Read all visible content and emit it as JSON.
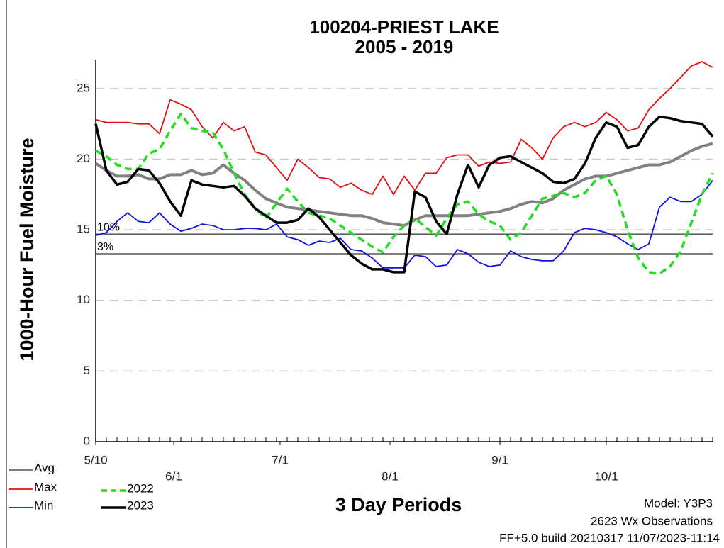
{
  "chart_data": {
    "type": "line",
    "title": "100204-PRIEST LAKE",
    "subtitle": "2005 - 2019",
    "x_label": "3 Day Periods",
    "y_label": "1000-Hour Fuel Moisture",
    "x": [
      "5/10",
      "5/13",
      "5/16",
      "5/19",
      "5/22",
      "5/25",
      "5/28",
      "5/31",
      "6/3",
      "6/6",
      "6/9",
      "6/12",
      "6/15",
      "6/18",
      "6/21",
      "6/24",
      "6/27",
      "6/30",
      "7/3",
      "7/6",
      "7/9",
      "7/12",
      "7/15",
      "7/18",
      "7/21",
      "7/24",
      "7/27",
      "7/30",
      "8/2",
      "8/5",
      "8/8",
      "8/11",
      "8/14",
      "8/17",
      "8/20",
      "8/23",
      "8/26",
      "8/29",
      "9/1",
      "9/4",
      "9/7",
      "9/10",
      "9/13",
      "9/16",
      "9/19",
      "9/22",
      "9/25",
      "9/28",
      "10/1",
      "10/4",
      "10/7",
      "10/10",
      "10/13",
      "10/16",
      "10/19",
      "10/22",
      "10/25",
      "10/28",
      "10/31"
    ],
    "xticks": [
      "5/10",
      "6/1",
      "7/1",
      "8/1",
      "9/1",
      "10/1"
    ],
    "ylim": [
      0,
      27
    ],
    "yticks": [
      0,
      5,
      10,
      15,
      20,
      25
    ],
    "grid": true,
    "series": [
      {
        "name": "Avg",
        "color": "#808080",
        "width": 4,
        "dashed": false,
        "values": [
          19.7,
          19.2,
          18.8,
          18.8,
          18.9,
          18.6,
          18.6,
          18.9,
          18.9,
          19.2,
          18.9,
          19.0,
          19.6,
          19.0,
          18.5,
          17.8,
          17.2,
          16.9,
          16.6,
          16.5,
          16.4,
          16.3,
          16.2,
          16.1,
          16.0,
          16.0,
          15.8,
          15.5,
          15.4,
          15.3,
          15.7,
          16.0,
          16.0,
          16.0,
          16.0,
          16.0,
          16.1,
          16.2,
          16.3,
          16.5,
          16.8,
          17.0,
          16.9,
          17.2,
          17.8,
          18.2,
          18.6,
          18.8,
          18.8,
          19.0,
          19.2,
          19.4,
          19.6,
          19.6,
          19.8,
          20.2,
          20.6,
          20.9,
          21.1
        ]
      },
      {
        "name": "Max",
        "color": "#e01010",
        "width": 1.8,
        "dashed": false,
        "values": [
          22.8,
          22.6,
          22.6,
          22.6,
          22.5,
          22.5,
          21.8,
          24.2,
          23.9,
          23.5,
          22.3,
          21.5,
          22.6,
          22.0,
          22.3,
          20.5,
          20.3,
          19.4,
          18.5,
          20.0,
          19.4,
          18.7,
          18.6,
          18.0,
          18.3,
          17.8,
          17.5,
          18.8,
          17.5,
          18.8,
          17.8,
          19.0,
          19.0,
          20.1,
          20.3,
          20.3,
          19.5,
          19.8,
          19.7,
          19.8,
          21.4,
          20.8,
          20.0,
          21.5,
          22.3,
          22.6,
          22.3,
          22.6,
          23.3,
          22.8,
          22.0,
          22.2,
          23.5,
          24.3,
          25.0,
          25.8,
          26.6,
          26.9,
          26.5
        ]
      },
      {
        "name": "Min",
        "color": "#1010e0",
        "width": 1.8,
        "dashed": false,
        "values": [
          14.6,
          14.8,
          15.6,
          16.2,
          15.6,
          15.5,
          16.2,
          15.4,
          14.9,
          15.1,
          15.4,
          15.3,
          15.0,
          15.0,
          15.1,
          15.1,
          15.0,
          15.4,
          14.5,
          14.3,
          13.9,
          14.2,
          14.1,
          14.4,
          13.6,
          13.5,
          13.0,
          12.3,
          12.3,
          12.3,
          13.2,
          13.1,
          12.4,
          12.5,
          13.6,
          13.3,
          12.7,
          12.4,
          12.5,
          13.5,
          13.1,
          12.9,
          12.8,
          12.8,
          13.5,
          14.8,
          15.1,
          15.0,
          14.8,
          14.5,
          14.0,
          13.6,
          14.0,
          16.6,
          17.3,
          17.0,
          17.0,
          17.5,
          18.5
        ]
      },
      {
        "name": "2022",
        "color": "#22dd22",
        "width": 3.5,
        "dashed": true,
        "values": [
          20.6,
          20.2,
          19.6,
          19.3,
          19.3,
          20.4,
          20.7,
          22.0,
          23.2,
          22.2,
          22.0,
          21.9,
          20.7,
          19.0,
          17.5,
          16.5,
          15.8,
          16.9,
          17.9,
          17.0,
          16.2,
          16.0,
          15.8,
          15.3,
          14.8,
          14.3,
          13.8,
          13.4,
          14.5,
          15.3,
          15.8,
          15.2,
          14.6,
          15.8,
          16.8,
          17.0,
          16.1,
          15.6,
          15.3,
          14.3,
          14.8,
          16.0,
          17.2,
          17.4,
          17.6,
          17.3,
          17.6,
          18.5,
          18.8,
          17.5,
          15.0,
          13.0,
          12.0,
          11.9,
          12.4,
          13.5,
          15.5,
          17.5,
          19.0
        ]
      },
      {
        "name": "2023",
        "color": "#000000",
        "width": 3.5,
        "dashed": false,
        "values": [
          22.5,
          19.2,
          18.2,
          18.4,
          19.3,
          19.2,
          18.3,
          17.0,
          16.0,
          18.5,
          18.2,
          18.1,
          18.0,
          18.1,
          17.4,
          16.5,
          16.0,
          15.5,
          15.5,
          15.7,
          16.5,
          15.9,
          15.0,
          14.1,
          13.2,
          12.6,
          12.2,
          12.2,
          12.0,
          12.0,
          17.7,
          17.3,
          15.6,
          14.7,
          17.5,
          19.6,
          18.0,
          19.6,
          20.1,
          20.2,
          19.8,
          19.4,
          19.0,
          18.4,
          18.3,
          18.6,
          19.7,
          21.5,
          22.6,
          22.3,
          20.8,
          21.0,
          22.3,
          23.0,
          22.9,
          22.7,
          22.6,
          22.5,
          21.6
        ]
      }
    ],
    "reference_lines": [
      {
        "value": 14.7,
        "label": "10%"
      },
      {
        "value": 13.3,
        "label": "3%"
      }
    ],
    "notes": [
      "Model: Y3P3",
      "2623 Wx Observations",
      "FF+5.0 build 20210317 11/07/2023-11:14"
    ]
  }
}
